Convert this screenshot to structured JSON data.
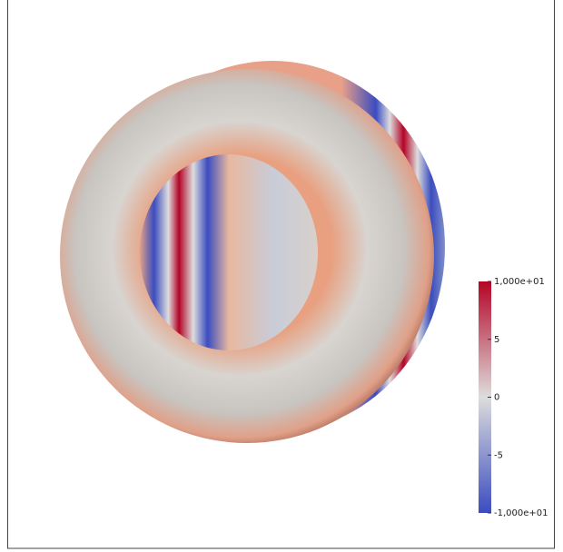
{
  "colorbar": {
    "range": [
      -10,
      10
    ],
    "colors": [
      "#3b4cc0",
      "#dddddd",
      "#b40426"
    ],
    "ticks": [
      {
        "value": 10,
        "label": "1,000e+01"
      },
      5,
      0,
      -5,
      {
        "value": -10,
        "label": "-1,000e+01"
      }
    ]
  }
}
